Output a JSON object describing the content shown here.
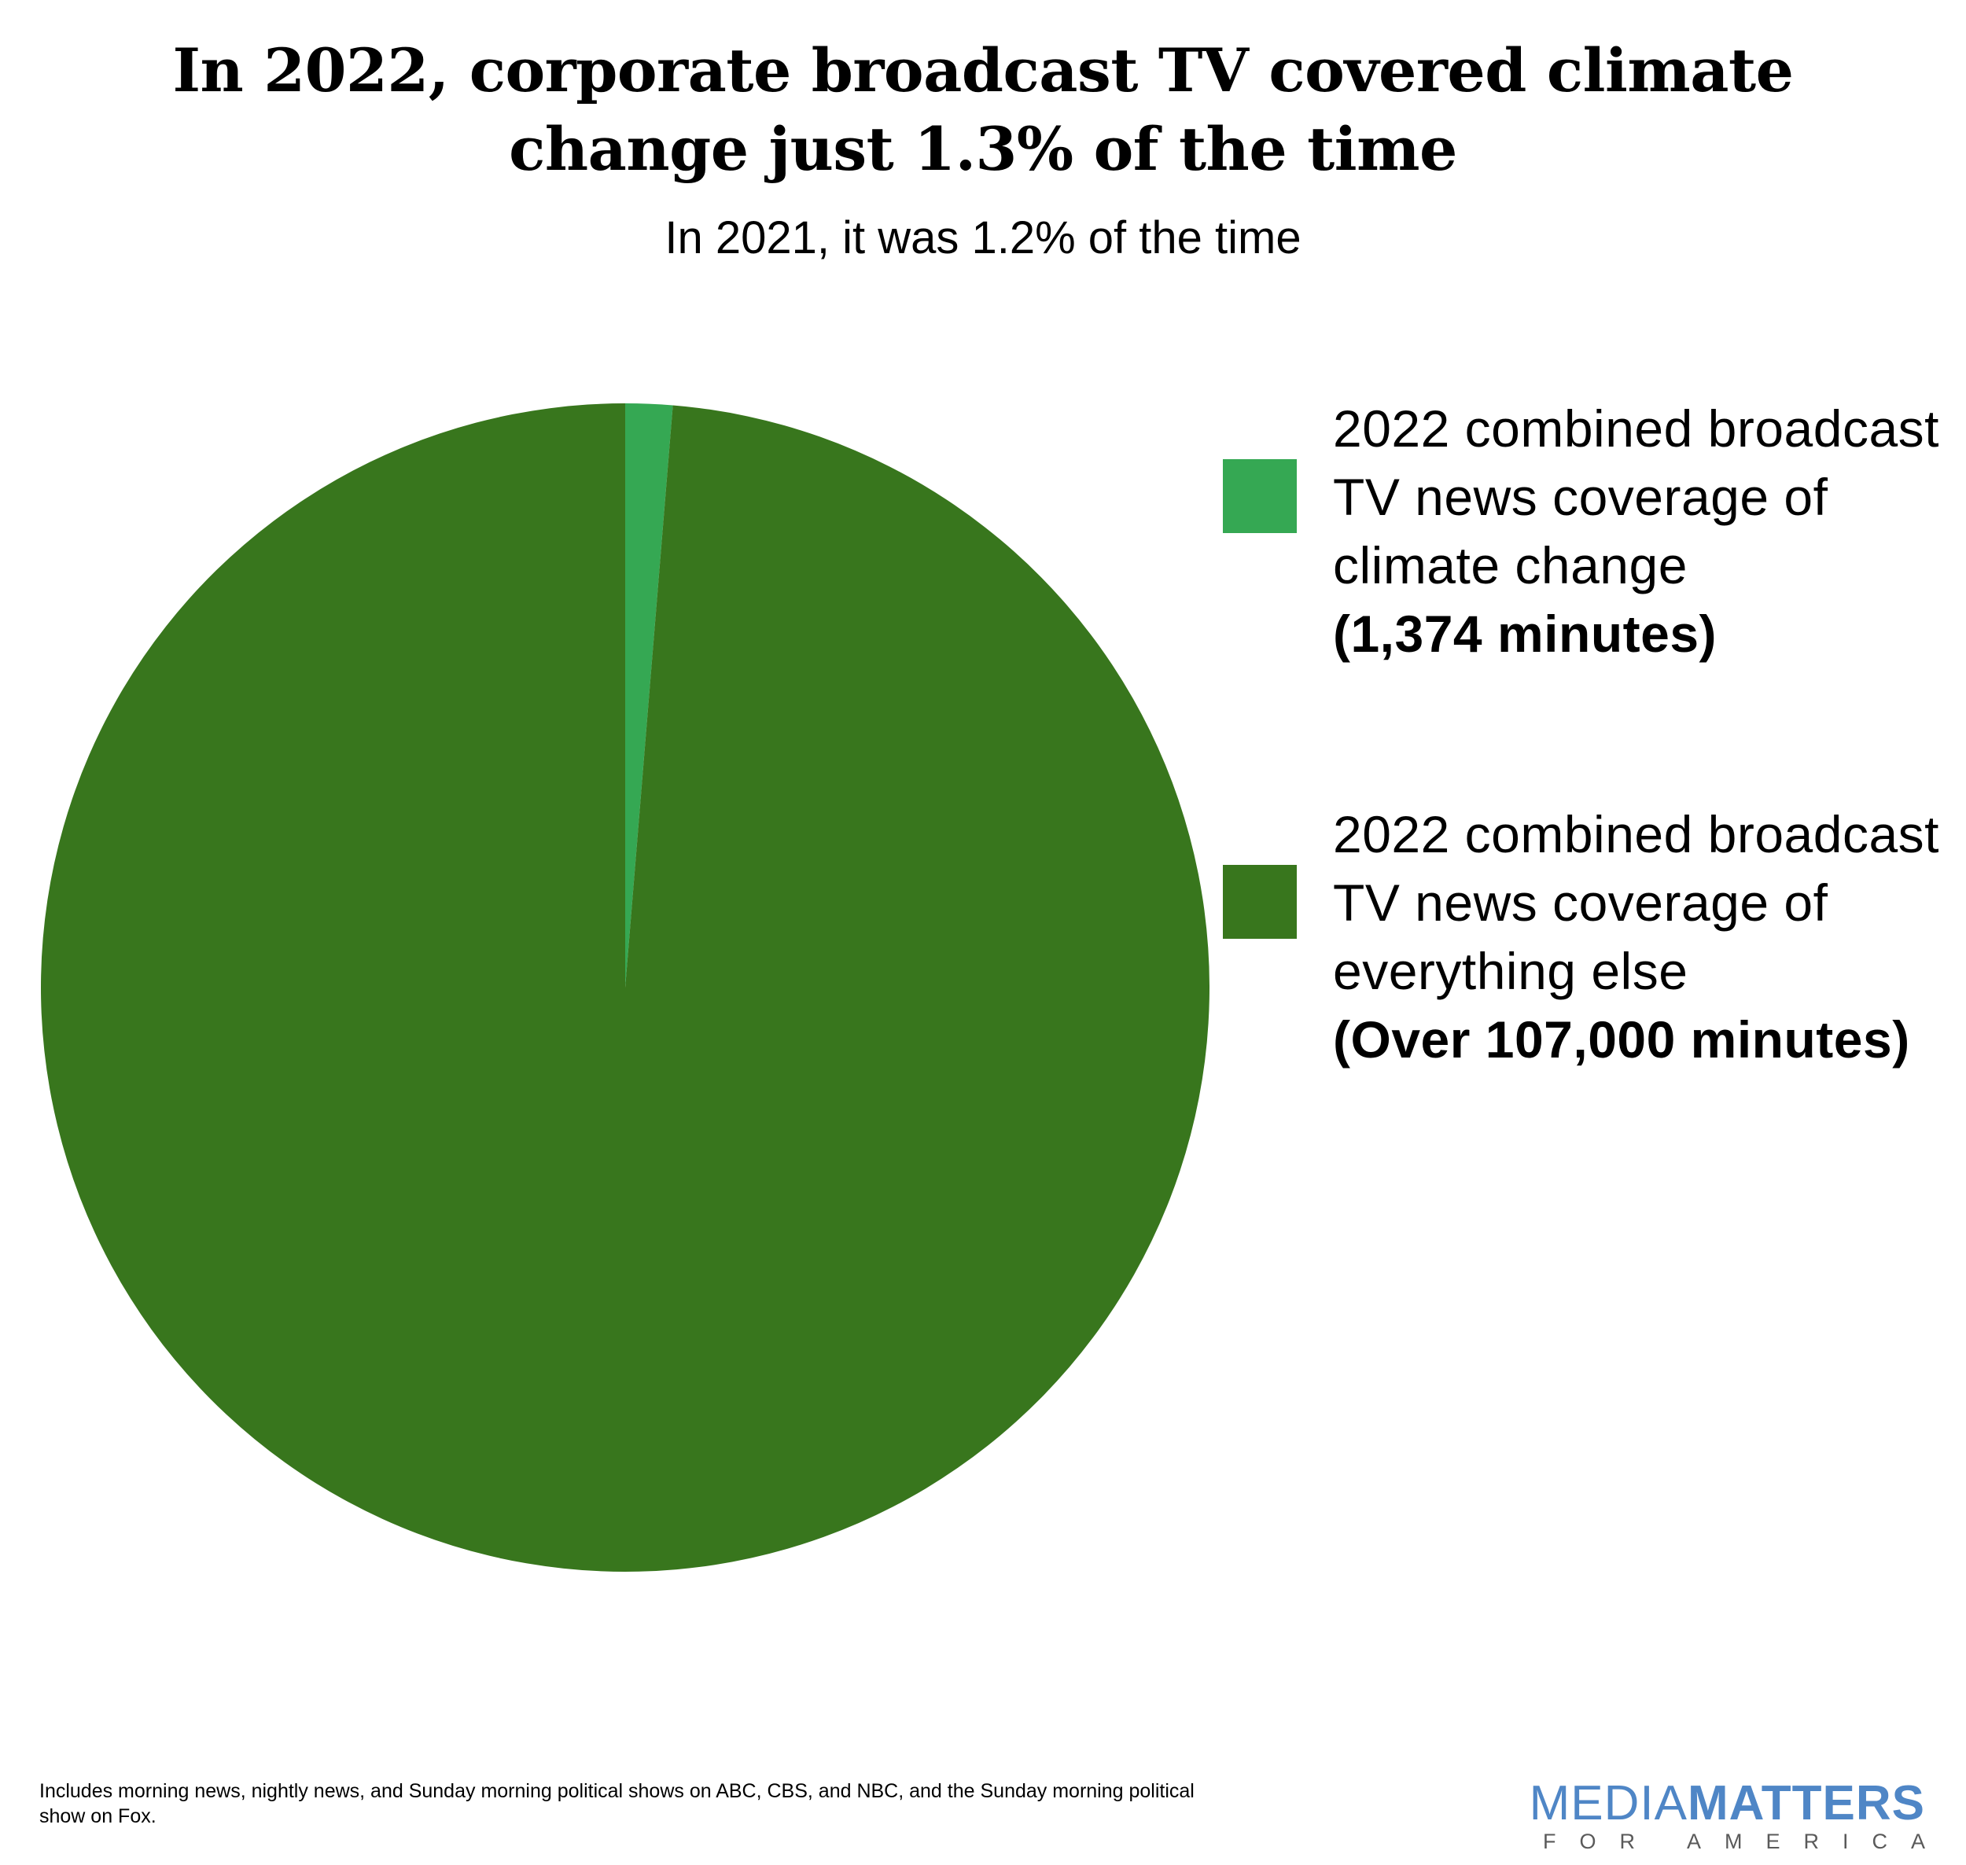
{
  "chart_data": {
    "type": "pie",
    "title": "In 2022, corporate broadcast TV covered climate change just 1.3% of the time",
    "subtitle": "In 2021, it was 1.2% of the time",
    "slices": [
      {
        "label": "2022 combined broadcast TV news coverage of climate change",
        "value_label": "(1,374 minutes)",
        "minutes": 1374,
        "percent": 1.3,
        "color": "#35a853"
      },
      {
        "label": "2022 combined broadcast TV news coverage of everything else",
        "value_label": "(Over 107,000 minutes)",
        "minutes": 107000,
        "percent": 98.7,
        "color": "#38761d"
      }
    ],
    "start_angle_deg": 0,
    "direction": "clockwise",
    "legend_position": "right"
  },
  "footnote": "Includes morning news, nightly news, and Sunday morning political shows on ABC, CBS, and NBC, and the Sunday morning political show on Fox.",
  "logo": {
    "part1": "MEDIA",
    "part2": "MATTERS",
    "tagline": "FOR AMERICA",
    "color": "#4f86c6"
  }
}
